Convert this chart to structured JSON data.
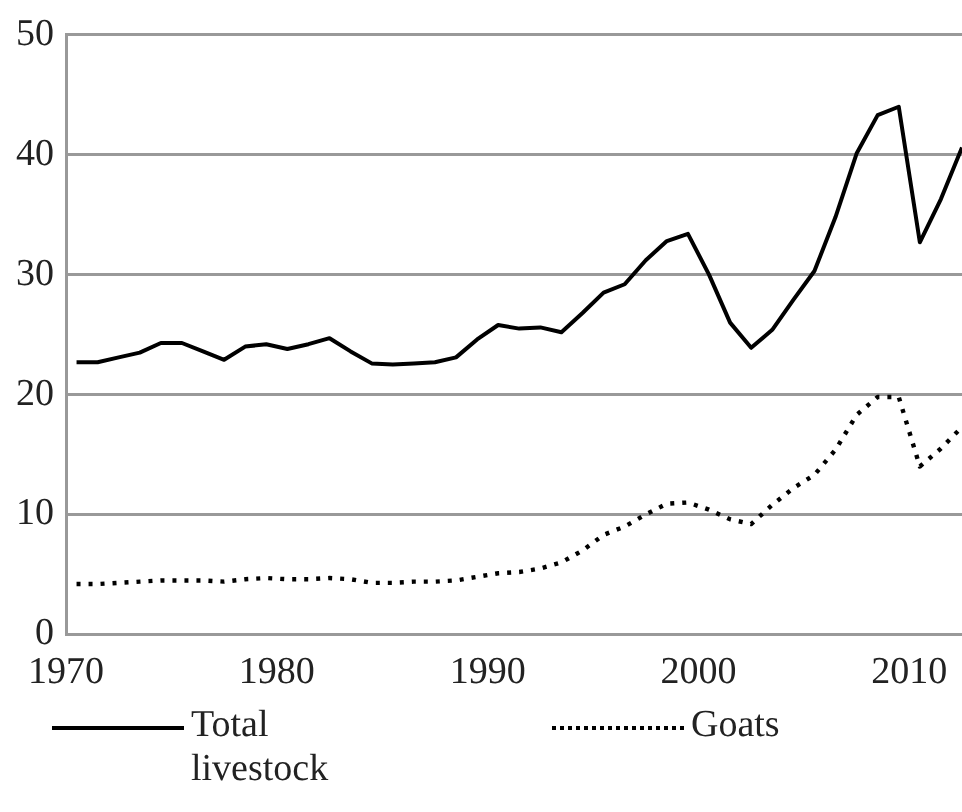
{
  "chart_data": {
    "type": "line",
    "x": [
      1970.5,
      1971.5,
      1972.5,
      1973.5,
      1974.5,
      1975.5,
      1976.5,
      1977.5,
      1978.5,
      1979.5,
      1980.5,
      1981.5,
      1982.5,
      1983.5,
      1984.5,
      1985.5,
      1986.5,
      1987.5,
      1988.5,
      1989.5,
      1990.5,
      1991.5,
      1992.5,
      1993.5,
      1994.5,
      1995.5,
      1996.5,
      1997.5,
      1998.5,
      1999.5,
      2000.5,
      2001.5,
      2002.5,
      2003.5,
      2004.5,
      2005.5,
      2006.5,
      2007.5,
      2008.5,
      2009.5,
      2010.5,
      2011.5,
      2012.5
    ],
    "series": [
      {
        "name": "Total livestock",
        "color": "#000000",
        "line_style": "solid",
        "values": [
          22.7,
          22.7,
          23.1,
          23.5,
          24.3,
          24.3,
          23.6,
          22.9,
          24.0,
          24.2,
          23.8,
          24.2,
          24.7,
          23.6,
          22.6,
          22.5,
          22.6,
          22.7,
          23.1,
          24.6,
          25.8,
          25.5,
          25.6,
          25.2,
          26.8,
          28.5,
          29.2,
          31.2,
          32.8,
          33.4,
          30.0,
          26.0,
          23.9,
          25.4,
          27.9,
          30.3,
          34.8,
          40.1,
          43.3,
          44.0,
          32.7,
          36.3,
          40.6
        ]
      },
      {
        "name": "Goats",
        "color": "#000000",
        "line_style": "dotted",
        "values": [
          4.2,
          4.2,
          4.3,
          4.4,
          4.5,
          4.5,
          4.5,
          4.4,
          4.6,
          4.7,
          4.6,
          4.6,
          4.7,
          4.6,
          4.3,
          4.3,
          4.4,
          4.4,
          4.5,
          4.8,
          5.1,
          5.2,
          5.5,
          6.0,
          7.0,
          8.3,
          9.0,
          10.0,
          10.9,
          11.0,
          10.4,
          9.6,
          9.2,
          10.8,
          12.2,
          13.3,
          15.4,
          18.3,
          19.8,
          19.8,
          14.0,
          15.5,
          17.3
        ]
      }
    ],
    "xlim": [
      1970,
      2012.5
    ],
    "xticks": [
      1970,
      1980,
      1990,
      2000,
      2010
    ],
    "ylim": [
      0,
      50
    ],
    "yticks": [
      0,
      10,
      20,
      30,
      40,
      50
    ],
    "grid": "y",
    "legend": "bottom",
    "marker": "none"
  }
}
